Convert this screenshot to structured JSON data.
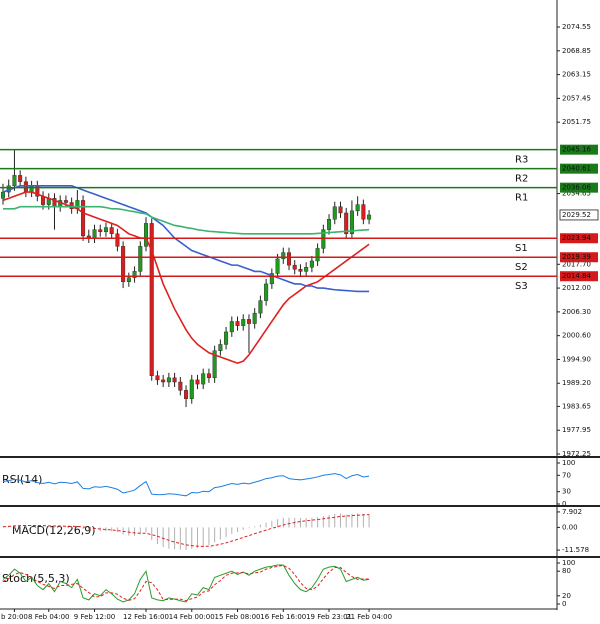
{
  "chart_data": [
    {
      "type": "candlestick",
      "categories": [
        null,
        null,
        "b 20:00",
        null,
        null,
        null,
        null,
        null,
        "8 Feb 04:00",
        null,
        null,
        null,
        null,
        null,
        null,
        null,
        "9 Feb 12:00",
        null,
        null,
        null,
        null,
        null,
        null,
        null,
        null,
        "12 Feb 16:00",
        null,
        null,
        null,
        null,
        null,
        null,
        null,
        "14 Feb 00:00",
        null,
        null,
        null,
        null,
        null,
        null,
        null,
        "15 Feb 08:00",
        null,
        null,
        null,
        null,
        null,
        null,
        null,
        "16 Feb 16:00",
        null,
        null,
        null,
        null,
        null,
        null,
        null,
        "19 Feb 23:01",
        null,
        null,
        null,
        null,
        null,
        null,
        "21 Feb 04:00"
      ],
      "open": [
        2033.5,
        2035.0,
        2036.5,
        2039.0,
        2037.5,
        2035.0,
        2036.5,
        2034.0,
        2032.0,
        2033.5,
        2031.5,
        2033.0,
        2032.5,
        2031.0,
        2033.0,
        2024.5,
        2024.0,
        2026.0,
        2025.5,
        2026.5,
        2025.0,
        2022.0,
        2013.5,
        2014.5,
        2016.0,
        2022.0,
        2027.5,
        1991.0,
        1990.0,
        1989.5,
        1990.5,
        1989.5,
        1987.5,
        1985.5,
        1990.0,
        1989.0,
        1991.5,
        1990.5,
        1997.0,
        1998.5,
        2001.5,
        2004.0,
        2003.0,
        2004.5,
        2003.5,
        2006.0,
        2009.0,
        2013.0,
        2015.5,
        2019.0,
        2020.5,
        2017.5,
        2016.5,
        2016.0,
        2017.0,
        2018.5,
        2021.5,
        2026.0,
        2028.5,
        2031.5,
        2030.0,
        2025.0,
        2030.5,
        2032.0,
        2028.5
      ],
      "high": [
        2037.0,
        2038.0,
        2045.3,
        2040.2,
        2038.7,
        2037.7,
        2037.7,
        2035.2,
        2034.7,
        2034.7,
        2034.2,
        2034.2,
        2033.7,
        2035.5,
        2034.2,
        2026.0,
        2027.2,
        2027.2,
        2027.7,
        2027.7,
        2026.2,
        2023.2,
        2015.7,
        2017.2,
        2023.2,
        2029.0,
        2028.7,
        1992.2,
        1991.2,
        1991.7,
        1991.7,
        1990.7,
        1988.7,
        1991.2,
        1991.2,
        1992.7,
        1992.7,
        1998.2,
        1999.7,
        2002.7,
        2005.2,
        2005.2,
        2005.7,
        2005.7,
        2007.2,
        2010.2,
        2014.2,
        2016.7,
        2020.2,
        2021.7,
        2021.7,
        2018.7,
        2017.7,
        2018.2,
        2019.7,
        2022.7,
        2027.2,
        2029.7,
        2032.7,
        2032.7,
        2031.2,
        2033.0,
        2034.0,
        2033.2,
        2030.7
      ],
      "low": [
        2032.0,
        2033.8,
        2035.3,
        2036.3,
        2033.8,
        2033.8,
        2032.8,
        2030.8,
        2030.8,
        2026.0,
        2030.3,
        2031.3,
        2029.8,
        2029.8,
        2023.3,
        2022.8,
        2022.8,
        2024.3,
        2024.3,
        2023.8,
        2020.8,
        2012.0,
        2012.3,
        2013.3,
        2014.8,
        2020.8,
        1989.8,
        1988.8,
        1988.3,
        1988.3,
        1988.3,
        1986.3,
        1983.5,
        1984.3,
        1987.8,
        1987.8,
        1989.3,
        1989.3,
        1995.8,
        1997.3,
        2000.3,
        2001.8,
        2001.8,
        1996.5,
        2002.3,
        2004.8,
        2007.8,
        2011.8,
        2014.3,
        2017.8,
        2016.3,
        2015.3,
        2014.8,
        2014.8,
        2015.8,
        2017.3,
        2020.3,
        2024.8,
        2027.3,
        2028.8,
        2023.8,
        2023.8,
        2029.3,
        2027.3,
        2027.3
      ],
      "close": [
        2035.0,
        2036.5,
        2039.0,
        2037.5,
        2035.0,
        2036.5,
        2034.0,
        2032.0,
        2033.5,
        2031.5,
        2033.0,
        2032.5,
        2031.0,
        2033.0,
        2024.5,
        2024.0,
        2026.0,
        2025.5,
        2026.5,
        2025.0,
        2022.0,
        2013.5,
        2014.5,
        2016.0,
        2022.0,
        2027.5,
        1991.0,
        1990.0,
        1989.5,
        1990.5,
        1989.5,
        1987.5,
        1985.5,
        1990.0,
        1989.0,
        1991.5,
        1990.5,
        1997.0,
        1998.5,
        2001.5,
        2004.0,
        2003.0,
        2004.5,
        2003.5,
        2006.0,
        2009.0,
        2013.0,
        2015.5,
        2019.0,
        2020.5,
        2017.5,
        2016.5,
        2016.0,
        2017.0,
        2018.5,
        2021.5,
        2026.0,
        2028.5,
        2031.5,
        2030.0,
        2025.0,
        2030.5,
        2032.0,
        2028.5,
        2029.52
      ],
      "up_color": "#1f9a1f",
      "down_color": "#d42020",
      "series": [
        {
          "color": "#e02020",
          "values": [
            2033,
            2033.5,
            2034,
            2034.5,
            2035,
            2035,
            2034.5,
            2034,
            2033.5,
            2033,
            2032.5,
            2032,
            2031.5,
            2031,
            2030,
            2029.5,
            2029,
            2028.5,
            2028,
            2027.5,
            2027,
            2026,
            2025,
            2024.5,
            2024,
            2024,
            2021,
            2017,
            2013,
            2010,
            2007,
            2004.5,
            2002,
            2000,
            1998.5,
            1997.5,
            1996.5,
            1996,
            1995.5,
            1995,
            1994.5,
            1994,
            1994.5,
            1996,
            1998,
            2000,
            2002,
            2004,
            2006,
            2008,
            2009.5,
            2010.5,
            2011.5,
            2012.5,
            2013,
            2013.5,
            2014.5,
            2015.5,
            2016.5,
            2017.5,
            2018.5,
            2019.5,
            2020.5,
            2021.5,
            2022.5
          ]
        },
        {
          "color": "#3a5fcd",
          "values": [
            2035,
            2035.5,
            2036,
            2036.5,
            2036.5,
            2036.5,
            2036.5,
            2036.5,
            2036.5,
            2036.5,
            2036.5,
            2036.5,
            2036.5,
            2036,
            2035.5,
            2035,
            2034.5,
            2034,
            2033.5,
            2033,
            2032.5,
            2032,
            2031.5,
            2031,
            2030.5,
            2030,
            2029,
            2028,
            2027,
            2025.5,
            2024,
            2023,
            2022,
            2021,
            2020.5,
            2020,
            2019.5,
            2019,
            2018.5,
            2018,
            2017.5,
            2017.5,
            2017,
            2016.5,
            2016,
            2016,
            2015.5,
            2015,
            2014.5,
            2014,
            2013.5,
            2013,
            2013,
            2012.5,
            2012.5,
            2012,
            2012,
            2011.8,
            2011.6,
            2011.5,
            2011.4,
            2011.3,
            2011.2,
            2011.2,
            2011.2
          ]
        },
        {
          "color": "#3cb371",
          "values": [
            2031,
            2031,
            2031,
            2031.5,
            2031.5,
            2031.5,
            2031.5,
            2031.5,
            2031.5,
            2031.5,
            2031.5,
            2031.5,
            2031.5,
            2031.5,
            2031.5,
            2031.5,
            2031.5,
            2031.5,
            2031.3,
            2031,
            2031,
            2030.8,
            2030.5,
            2030.3,
            2030,
            2029.8,
            2029,
            2028.5,
            2028,
            2027.5,
            2027,
            2026.8,
            2026.5,
            2026.3,
            2026,
            2025.8,
            2025.6,
            2025.5,
            2025.4,
            2025.3,
            2025.2,
            2025.1,
            2025,
            2025,
            2025,
            2025,
            2025,
            2025,
            2025,
            2025,
            2025,
            2025,
            2025,
            2025,
            2025,
            2025.1,
            2025.2,
            2025.3,
            2025.4,
            2025.5,
            2025.6,
            2025.7,
            2025.8,
            2025.9,
            2026
          ]
        }
      ],
      "levels": [
        {
          "name": "R3",
          "value": 2045.16,
          "color": "#1a7a1a"
        },
        {
          "name": "R2",
          "value": 2040.61,
          "color": "#1a7a1a"
        },
        {
          "name": "R1",
          "value": 2036.06,
          "color": "#1a7a1a"
        },
        {
          "name": "S1",
          "value": 2023.94,
          "color": "#d41a1a"
        },
        {
          "name": "S2",
          "value": 2019.39,
          "color": "#d41a1a"
        },
        {
          "name": "S3",
          "value": 2014.84,
          "color": "#d41a1a"
        }
      ],
      "ylim": [
        1971.53,
        2081.02
      ],
      "yticks": [
        2074.55,
        2068.85,
        2063.15,
        2057.45,
        2051.75,
        2034.65,
        {
          "value": 2017.7,
          "label": "2017.70"
        },
        {
          "value": 2012,
          "label": "2012.00"
        },
        {
          "value": 2006.3,
          "label": "2006.30"
        },
        {
          "value": 2000.6,
          "label": "2000.60"
        },
        {
          "value": 1994.9,
          "label": "1994.90"
        },
        {
          "value": 1989.2,
          "label": "1989.20"
        },
        1983.65,
        1977.95,
        1972.25
      ]
    },
    {
      "type": "line",
      "title": "RSI(14)",
      "series": [
        {
          "color": "#1e7fe0",
          "values": [
            55,
            57,
            60,
            58,
            54,
            57,
            52,
            50,
            53,
            49,
            53,
            52,
            50,
            54,
            38,
            37,
            42,
            41,
            43,
            40,
            36,
            27,
            30,
            34,
            45,
            55,
            24,
            23,
            23,
            25,
            24,
            22,
            20,
            28,
            27,
            31,
            30,
            40,
            42,
            46,
            50,
            48,
            51,
            49,
            53,
            57,
            62,
            64,
            68,
            69,
            62,
            60,
            59,
            61,
            63,
            66,
            70,
            72,
            74,
            71,
            62,
            69,
            72,
            66,
            68
          ]
        }
      ],
      "ylim": [
        0,
        100
      ],
      "yticks": [
        100,
        70,
        30,
        0
      ]
    },
    {
      "type": "macd",
      "title": "MACD(12,26,9)",
      "series": [
        {
          "kind": "bar",
          "color": "#b0b0b0",
          "values": [
            0.5,
            0.8,
            1.2,
            1.3,
            1.0,
            1.0,
            0.8,
            0.6,
            0.6,
            0.4,
            0.5,
            0.4,
            0.3,
            0.4,
            -0.8,
            -1.5,
            -1.8,
            -2.0,
            -2.0,
            -2.1,
            -2.4,
            -3.6,
            -4.2,
            -4.3,
            -3.6,
            -2.5,
            -6.5,
            -8.5,
            -10.0,
            -10.8,
            -11.2,
            -11.4,
            -11.5,
            -11.0,
            -10.5,
            -9.8,
            -9.0,
            -7.6,
            -6.2,
            -4.8,
            -3.3,
            -2.3,
            -1.2,
            -0.4,
            0.5,
            1.4,
            2.4,
            3.3,
            4.2,
            4.9,
            5.0,
            4.9,
            4.8,
            4.8,
            4.9,
            5.2,
            5.8,
            6.3,
            6.9,
            7.1,
            6.6,
            6.9,
            7.2,
            6.9,
            6.8
          ]
        },
        {
          "kind": "line",
          "dashed": true,
          "color": "#e02020",
          "values": [
            0.3,
            0.5,
            0.7,
            0.9,
            1.0,
            1.0,
            1.0,
            0.9,
            0.8,
            0.7,
            0.7,
            0.6,
            0.5,
            0.5,
            0.2,
            -0.1,
            -0.5,
            -0.8,
            -1.1,
            -1.3,
            -1.6,
            -2.0,
            -2.4,
            -2.8,
            -3.0,
            -3.0,
            -3.7,
            -4.5,
            -5.6,
            -6.6,
            -7.5,
            -8.2,
            -8.9,
            -9.3,
            -9.6,
            -9.7,
            -9.6,
            -9.2,
            -8.6,
            -7.9,
            -7.0,
            -6.1,
            -5.1,
            -4.2,
            -3.2,
            -2.3,
            -1.4,
            -0.5,
            0.4,
            1.2,
            1.9,
            2.5,
            3.0,
            3.4,
            3.7,
            4.0,
            4.4,
            4.8,
            5.2,
            5.6,
            5.8,
            6.0,
            6.2,
            6.4,
            6.5
          ]
        }
      ],
      "ylim": [
        -14.6,
        9.9
      ],
      "yticks": [
        7.902,
        {
          "value": 0,
          "label": "0.00"
        },
        -11.578
      ]
    },
    {
      "type": "line",
      "title": "Stoch(5,5,3)",
      "series": [
        {
          "color": "#2a9d2a",
          "values": [
            60,
            70,
            85,
            75,
            55,
            65,
            45,
            35,
            50,
            30,
            55,
            50,
            40,
            60,
            15,
            10,
            25,
            20,
            35,
            25,
            12,
            5,
            10,
            25,
            60,
            80,
            15,
            10,
            8,
            15,
            12,
            8,
            5,
            25,
            22,
            40,
            35,
            65,
            70,
            75,
            80,
            72,
            78,
            70,
            80,
            85,
            90,
            92,
            95,
            95,
            70,
            50,
            35,
            30,
            40,
            60,
            85,
            90,
            92,
            85,
            55,
            60,
            65,
            58,
            60
          ]
        },
        {
          "color": "#e02020",
          "dashed": true,
          "values": [
            55,
            62,
            72,
            77,
            72,
            65,
            55,
            48,
            43,
            38,
            45,
            45,
            48,
            50,
            38,
            28,
            17,
            18,
            27,
            27,
            24,
            14,
            9,
            13,
            32,
            55,
            52,
            35,
            11,
            11,
            12,
            12,
            8,
            13,
            17,
            29,
            32,
            47,
            57,
            70,
            75,
            76,
            77,
            73,
            76,
            78,
            85,
            89,
            92,
            94,
            87,
            72,
            52,
            38,
            35,
            43,
            62,
            78,
            89,
            89,
            77,
            67,
            60,
            61,
            61
          ]
        }
      ],
      "ylim": [
        0,
        100
      ],
      "yticks": [
        100,
        80,
        20,
        0
      ]
    }
  ]
}
